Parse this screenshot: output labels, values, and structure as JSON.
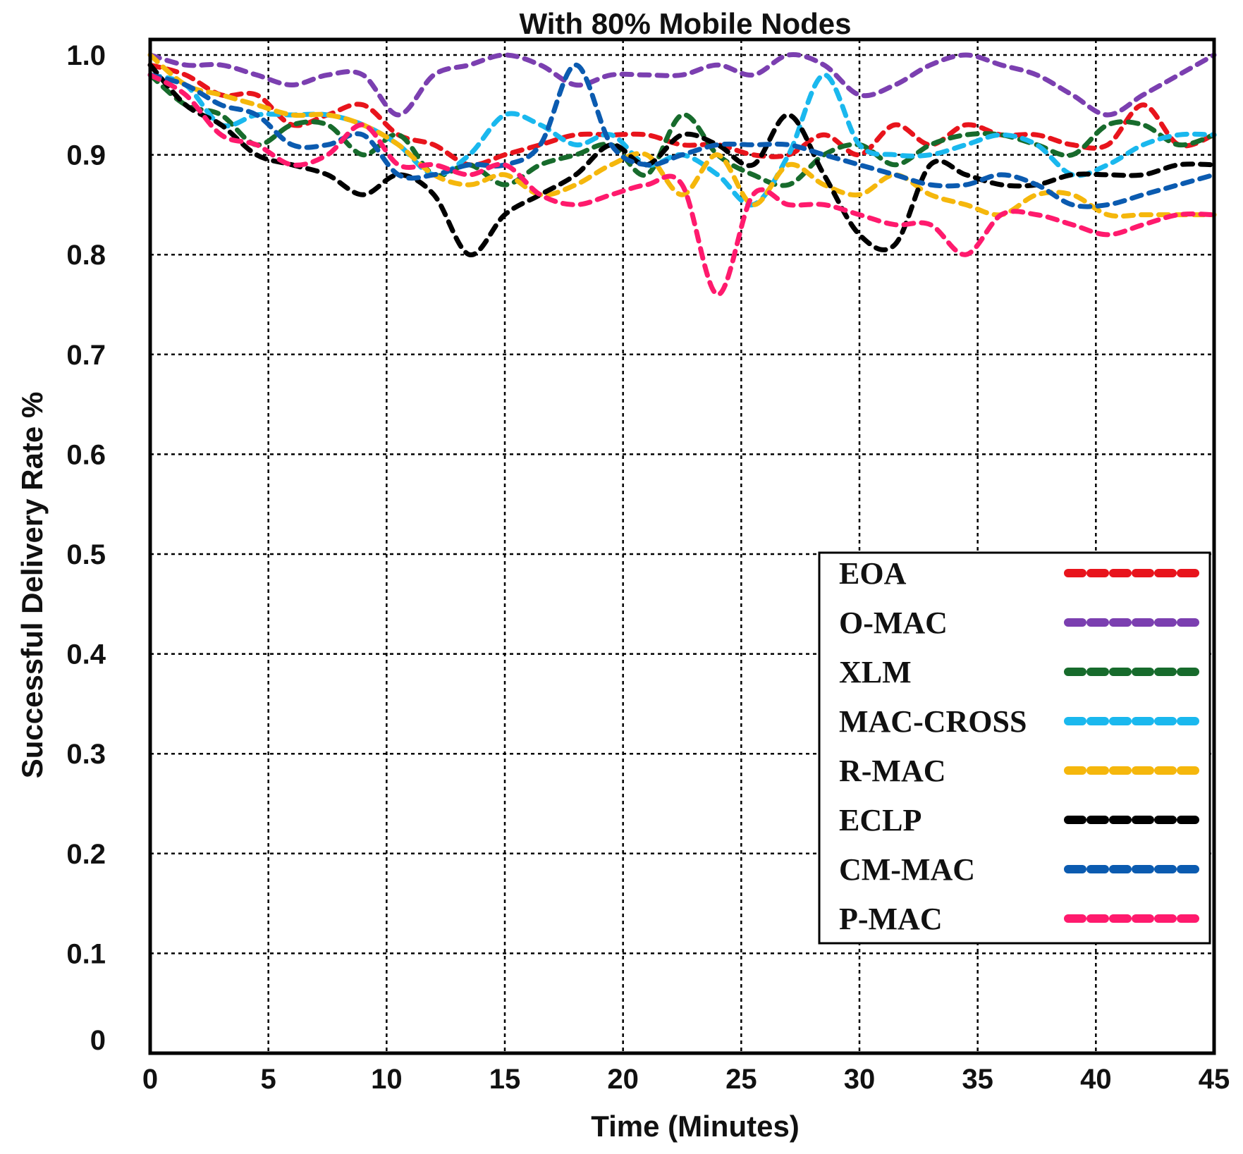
{
  "chart_data": {
    "type": "line",
    "title": "With 80% Mobile Nodes",
    "xlabel": "Time (Minutes)",
    "ylabel": "Successful Delivery Rate %",
    "xlim": [
      0,
      45
    ],
    "ylim": [
      0,
      1.0
    ],
    "x_ticks": [
      0,
      5,
      10,
      15,
      20,
      25,
      30,
      35,
      40,
      45
    ],
    "y_ticks": [
      0,
      0.1,
      0.2,
      0.3,
      0.4,
      0.5,
      0.6,
      0.7,
      0.8,
      0.9,
      1.0
    ],
    "x_tick_labels": [
      "0",
      "5",
      "10",
      "15",
      "20",
      "25",
      "30",
      "35",
      "40",
      "45"
    ],
    "y_tick_labels": [
      "0",
      "0.1",
      "0.2",
      "0.3",
      "0.4",
      "0.5",
      "0.6",
      "0.7",
      "0.8",
      "0.9",
      "1.0"
    ],
    "grid": true,
    "legend_position": "bottom-right",
    "x": [
      0,
      1.5,
      3,
      4.5,
      6,
      7.5,
      9,
      10.5,
      12,
      13.5,
      15,
      16.5,
      18,
      19.5,
      21,
      22.5,
      24,
      25.5,
      27,
      28.5,
      30,
      31.5,
      33,
      34.5,
      36,
      37.5,
      39,
      40.5,
      42,
      43.5,
      45
    ],
    "series": [
      {
        "name": "EOA",
        "color": "#e8141c",
        "values": [
          0.99,
          0.98,
          0.96,
          0.96,
          0.93,
          0.94,
          0.95,
          0.92,
          0.91,
          0.89,
          0.9,
          0.91,
          0.92,
          0.92,
          0.92,
          0.91,
          0.91,
          0.9,
          0.9,
          0.92,
          0.9,
          0.93,
          0.91,
          0.93,
          0.92,
          0.92,
          0.91,
          0.91,
          0.95,
          0.91,
          0.92
        ]
      },
      {
        "name": "O-MAC",
        "color": "#7b3fb0",
        "values": [
          1.0,
          0.99,
          0.99,
          0.98,
          0.97,
          0.98,
          0.98,
          0.94,
          0.98,
          0.99,
          1.0,
          0.99,
          0.97,
          0.98,
          0.98,
          0.98,
          0.99,
          0.98,
          1.0,
          0.99,
          0.96,
          0.97,
          0.99,
          1.0,
          0.99,
          0.98,
          0.96,
          0.94,
          0.96,
          0.98,
          1.0
        ]
      },
      {
        "name": "XLM",
        "color": "#176b2c",
        "values": [
          0.98,
          0.95,
          0.94,
          0.91,
          0.93,
          0.93,
          0.9,
          0.92,
          0.88,
          0.89,
          0.87,
          0.89,
          0.9,
          0.91,
          0.88,
          0.94,
          0.9,
          0.88,
          0.87,
          0.9,
          0.91,
          0.89,
          0.91,
          0.92,
          0.92,
          0.91,
          0.9,
          0.93,
          0.93,
          0.91,
          0.92
        ]
      },
      {
        "name": "MAC-CROSS",
        "color": "#1ab8ee",
        "values": [
          0.98,
          0.97,
          0.93,
          0.94,
          0.94,
          0.94,
          0.93,
          0.91,
          0.88,
          0.9,
          0.94,
          0.93,
          0.91,
          0.92,
          0.89,
          0.9,
          0.88,
          0.85,
          0.9,
          0.98,
          0.91,
          0.9,
          0.9,
          0.91,
          0.92,
          0.91,
          0.88,
          0.89,
          0.91,
          0.92,
          0.92
        ]
      },
      {
        "name": "R-MAC",
        "color": "#f5b70c",
        "values": [
          1.0,
          0.97,
          0.96,
          0.95,
          0.94,
          0.94,
          0.93,
          0.91,
          0.88,
          0.87,
          0.88,
          0.86,
          0.87,
          0.89,
          0.9,
          0.86,
          0.9,
          0.85,
          0.89,
          0.87,
          0.86,
          0.88,
          0.86,
          0.85,
          0.84,
          0.86,
          0.86,
          0.84,
          0.84,
          0.84,
          0.84
        ]
      },
      {
        "name": "ECLP",
        "color": "#000000",
        "values": [
          0.99,
          0.95,
          0.93,
          0.9,
          0.89,
          0.88,
          0.86,
          0.88,
          0.86,
          0.8,
          0.84,
          0.86,
          0.88,
          0.91,
          0.89,
          0.92,
          0.91,
          0.89,
          0.94,
          0.88,
          0.82,
          0.81,
          0.89,
          0.88,
          0.87,
          0.87,
          0.88,
          0.88,
          0.88,
          0.89,
          0.89
        ]
      },
      {
        "name": "CM-MAC",
        "color": "#0b5bb0",
        "values": [
          0.98,
          0.97,
          0.95,
          0.94,
          0.91,
          0.91,
          0.92,
          0.88,
          0.88,
          0.89,
          0.89,
          0.91,
          0.99,
          0.91,
          0.89,
          0.9,
          0.91,
          0.91,
          0.91,
          0.9,
          0.89,
          0.88,
          0.87,
          0.87,
          0.88,
          0.87,
          0.85,
          0.85,
          0.86,
          0.87,
          0.88
        ]
      },
      {
        "name": "P-MAC",
        "color": "#ff1a6d",
        "values": [
          0.98,
          0.96,
          0.92,
          0.91,
          0.89,
          0.9,
          0.93,
          0.89,
          0.89,
          0.88,
          0.89,
          0.86,
          0.85,
          0.86,
          0.87,
          0.87,
          0.76,
          0.86,
          0.85,
          0.85,
          0.84,
          0.83,
          0.83,
          0.8,
          0.84,
          0.84,
          0.83,
          0.82,
          0.83,
          0.84,
          0.84
        ]
      }
    ]
  }
}
